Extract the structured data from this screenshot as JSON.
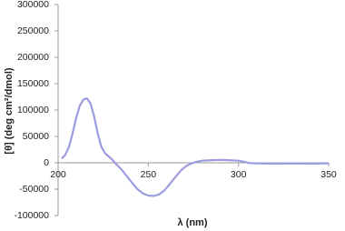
{
  "chart_data": {
    "type": "line",
    "xlabel": "λ (nm)",
    "ylabel": "[θ] (deg cm²/dmol)",
    "x": [
      202,
      204,
      206,
      208,
      210,
      212,
      214,
      216,
      218,
      220,
      222,
      224,
      226,
      228,
      230,
      232,
      235,
      238,
      241,
      244,
      247,
      250,
      253,
      256,
      259,
      262,
      265,
      268,
      271,
      274,
      277,
      280,
      285,
      290,
      295,
      300,
      303,
      306,
      310,
      320,
      330,
      340,
      350
    ],
    "values": [
      8000,
      15000,
      30000,
      55000,
      85000,
      108000,
      120000,
      122000,
      112000,
      88000,
      55000,
      30000,
      18000,
      12000,
      6000,
      -2000,
      -12000,
      -25000,
      -38000,
      -50000,
      -58000,
      -62000,
      -63000,
      -60000,
      -52000,
      -40000,
      -27000,
      -15000,
      -6000,
      -1000,
      2000,
      4000,
      5000,
      5500,
      5000,
      4000,
      2000,
      -500,
      -1000,
      -1500,
      -1000,
      -1500,
      -1000
    ],
    "color": "#9c9ce0",
    "xlim": [
      200,
      350
    ],
    "xticks": [
      200,
      250,
      300,
      350
    ],
    "ylim": [
      -100000,
      300000
    ],
    "yticks": [
      -100000,
      -50000,
      0,
      50000,
      100000,
      150000,
      200000,
      250000,
      300000
    ]
  }
}
